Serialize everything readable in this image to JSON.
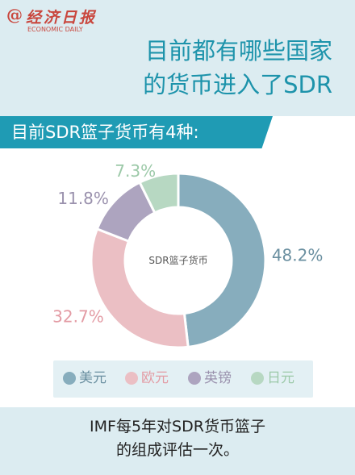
{
  "logo": {
    "symbol": "@",
    "name_cn": "经济日报",
    "name_en": "ECONOMIC DAILY",
    "color": "#c9463d"
  },
  "headline": {
    "line1": "目前都有哪些国家",
    "line2": "的货币进入了SDR",
    "color": "#1d93ab"
  },
  "banner": {
    "text": "目前SDR篮子货币有4种:",
    "color": "#1f9bb4"
  },
  "chart_data": {
    "type": "pie",
    "center_label": "SDR篮子货币",
    "categories": [
      "美元",
      "欧元",
      "英镑",
      "日元"
    ],
    "values": [
      48.2,
      32.7,
      11.8,
      7.3
    ],
    "value_labels": [
      "48.2%",
      "32.7%",
      "11.8%",
      "7.3%"
    ],
    "colors": [
      "#87adbd",
      "#ebbfc4",
      "#ada4bf",
      "#b7d8c2"
    ],
    "label_colors": [
      "#6a8fa0",
      "#e39ba4",
      "#9a91ad",
      "#9cc9a8"
    ],
    "legend_placement": "bottom"
  },
  "footer": {
    "line1": "IMF每5年对SDR货币篮子",
    "line2": "的组成评估一次。"
  }
}
